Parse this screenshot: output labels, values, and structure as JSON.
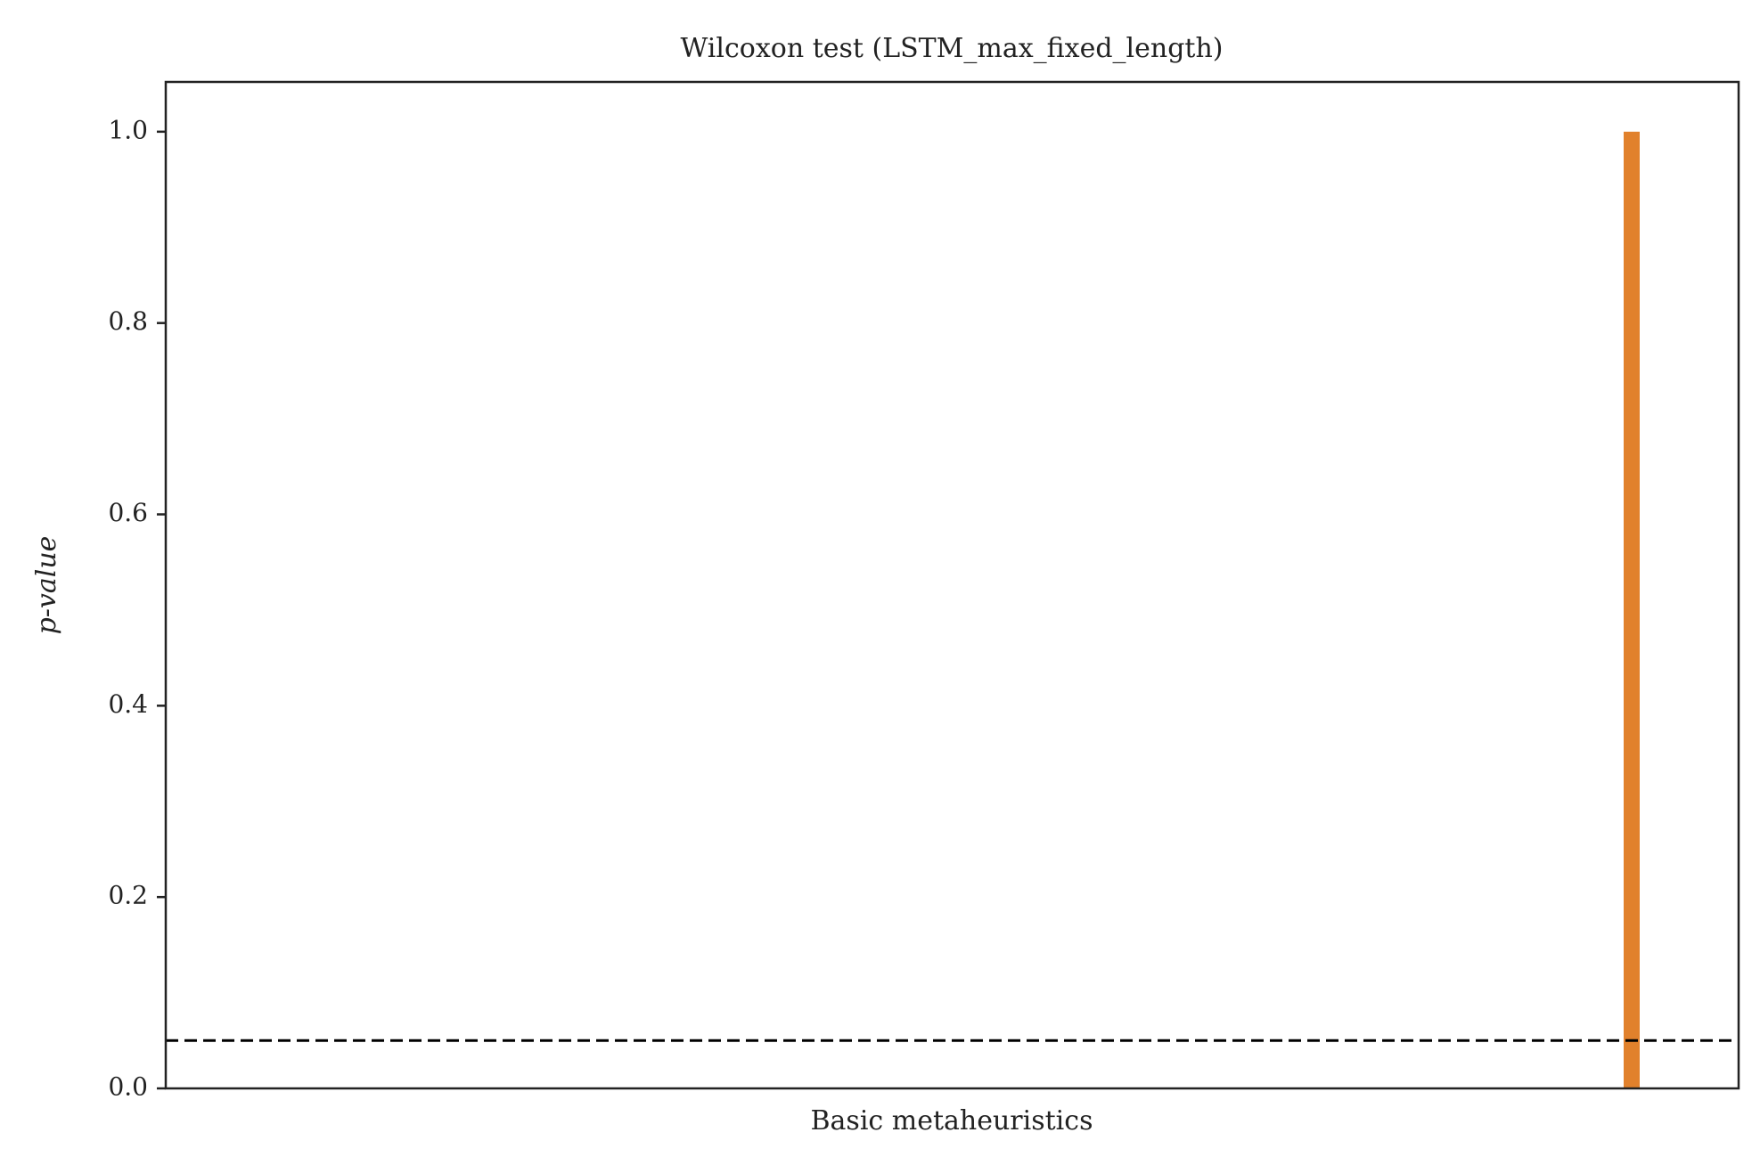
{
  "chart_data": {
    "type": "bar",
    "title": "Wilcoxon test (LSTM_max_fixed_length)",
    "x_label": "Basic metaheuristics",
    "y_label": "p-value",
    "categories": [
      null
    ],
    "values": [
      1.0
    ],
    "color": "#e1812c",
    "ylim": [
      0,
      1.052
    ],
    "yticks": [
      {
        "value": 0,
        "label": "0.0"
      },
      0.2,
      0.4,
      0.6,
      0.8,
      {
        "value": 1,
        "label": "1.0"
      }
    ],
    "reference_line": {
      "value": 0.05,
      "style": "dashed",
      "color": "#000000"
    }
  }
}
